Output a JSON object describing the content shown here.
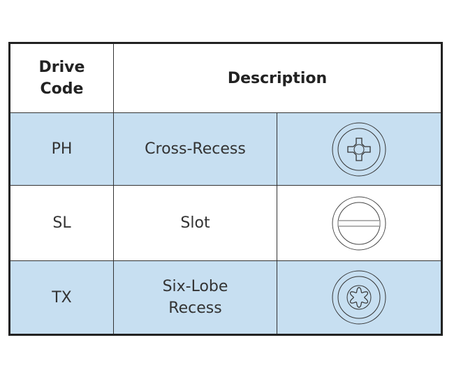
{
  "header": {
    "drive_code": "Drive Code",
    "description": "Description"
  },
  "rows": [
    {
      "code": "PH",
      "description": "Cross-Recess",
      "icon": "phillips-drive-icon",
      "shaded": true
    },
    {
      "code": "SL",
      "description": "Slot",
      "icon": "slotted-drive-icon",
      "shaded": false
    },
    {
      "code": "TX",
      "description": "Six-Lobe Recess",
      "icon": "torx-drive-icon",
      "shaded": true
    }
  ],
  "colors": {
    "shaded_row": "#c7dff1",
    "border": "#222222"
  }
}
